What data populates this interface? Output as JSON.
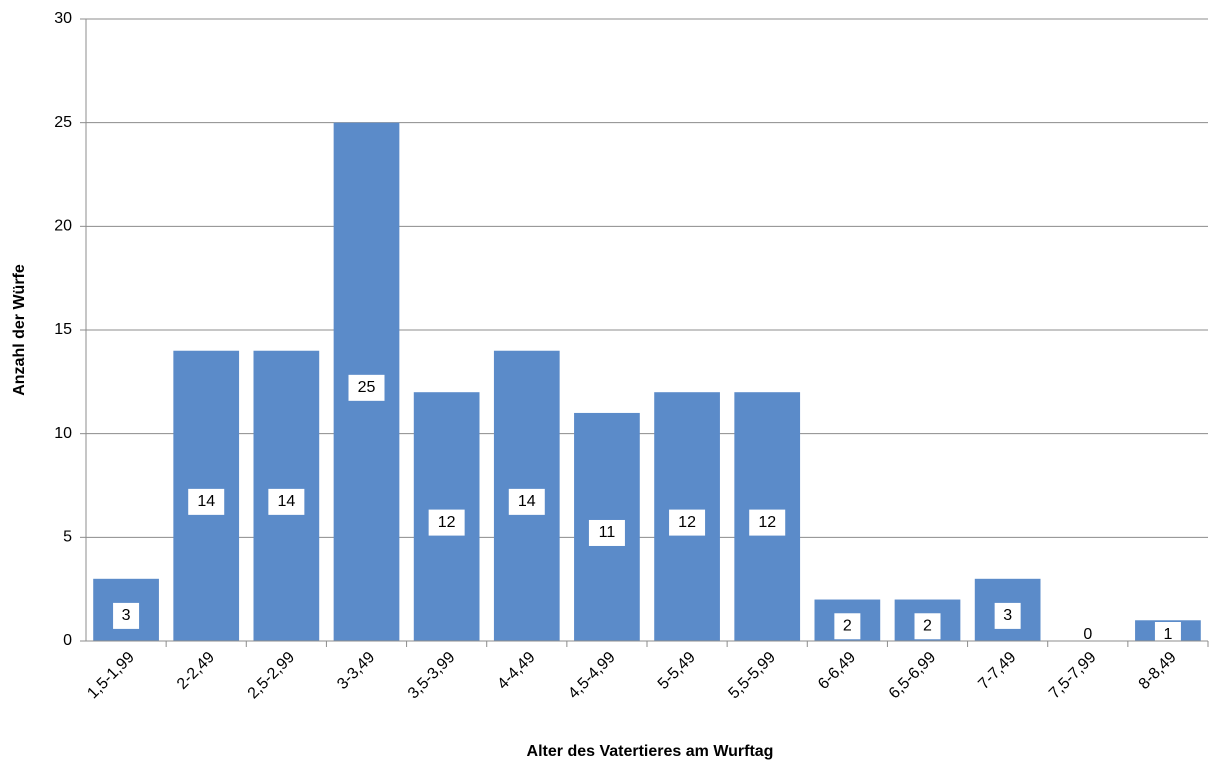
{
  "chart_data": {
    "type": "bar",
    "xlabel": "Alter des Vatertieres am Wurftag",
    "ylabel": "Anzahl der Würfe",
    "categories": [
      "1,5-1,99",
      "2-2,49",
      "2,5-2,99",
      "3-3,49",
      "3,5-3,99",
      "4-4,49",
      "4,5-4,99",
      "5-5,49",
      "5,5-5,99",
      "6-6,49",
      "6,5-6,99",
      "7-7,49",
      "7,5-7,99",
      "8-8,49"
    ],
    "values": [
      3,
      14,
      14,
      25,
      12,
      14,
      11,
      12,
      12,
      2,
      2,
      3,
      0,
      1
    ],
    "color": "#5b8bc9",
    "ylim": [
      0,
      30
    ],
    "yticks": [
      0,
      5,
      10,
      15,
      20,
      25,
      30
    ],
    "grid": true
  }
}
